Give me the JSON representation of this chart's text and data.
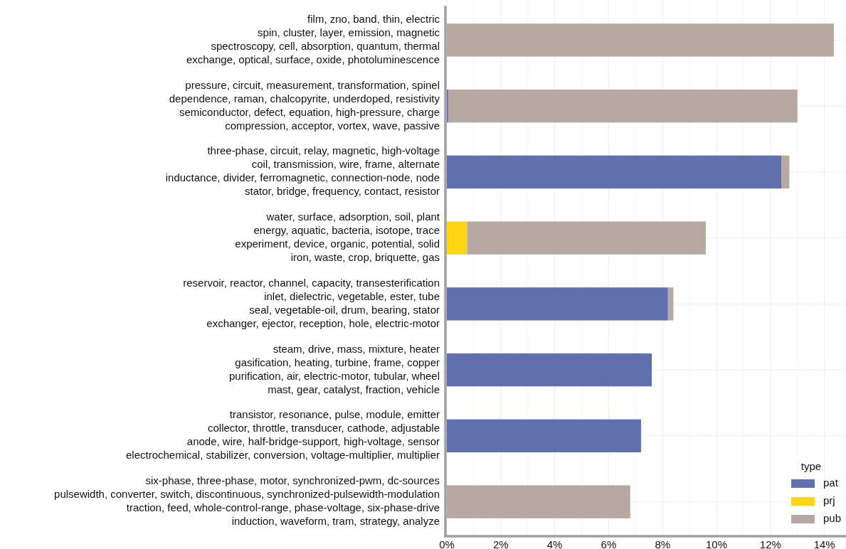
{
  "chart_data": {
    "type": "bar",
    "orientation": "horizontal",
    "stacked": true,
    "categories": [
      "film, zno, band, thin, electric\nspin, cluster, layer, emission, magnetic\nspectroscopy, cell, absorption, quantum, thermal\nexchange, optical, surface, oxide, photoluminescence",
      "pressure, circuit, measurement, transformation, spinel\ndependence, raman, chalcopyrite, underdoped, resistivity\nsemiconductor, defect, equation, high-pressure, charge\ncompression, acceptor, vortex, wave, passive",
      "three-phase, circuit, relay, magnetic, high-voltage\ncoil, transmission, wire, frame, alternate\ninductance, divider, ferromagnetic, connection-node, node\nstator, bridge, frequency, contact, resistor",
      "water, surface, adsorption, soil, plant\nenergy, aquatic, bacteria, isotope, trace\nexperiment, device, organic, potential, solid\niron, waste, crop, briquette, gas",
      "reservoir, reactor, channel, capacity, transesterification\ninlet, dielectric, vegetable, ester, tube\nseal, vegetable-oil, drum, bearing, stator\nexchanger, ejector, reception, hole, electric-motor",
      "steam, drive, mass, mixture, heater\ngasification, heating, turbine, frame, copper\npurification, air, electric-motor, tubular, wheel\nmast, gear, catalyst, fraction, vehicle",
      "transistor, resonance, pulse, module, emitter\ncollector, throttle, transducer, cathode, adjustable\nanode, wire, half-bridge-support, high-voltage, sensor\nelectrochemical, stabilizer, conversion, voltage-multiplier, multiplier",
      "six-phase, three-phase, motor, synchronized-pwm, dc-sources\npulsewidth, converter, switch, discontinuous, synchronized-pulsewidth-modulation\ntraction, feed, whole-control-range, phase-voltage, six-phase-drive\ninduction, waveform, tram, strategy, analyze"
    ],
    "series": [
      {
        "name": "pat",
        "color": "#6070ae",
        "values": [
          null,
          0.05,
          12.4,
          null,
          8.2,
          7.6,
          7.2,
          null
        ]
      },
      {
        "name": "prj",
        "color": "#ffd514",
        "values": [
          null,
          null,
          null,
          0.75,
          null,
          null,
          null,
          null
        ]
      },
      {
        "name": "pub",
        "color": "#b7a9a2",
        "values": [
          14.35,
          12.95,
          0.3,
          8.85,
          0.2,
          null,
          null,
          6.8
        ]
      }
    ],
    "xlim": [
      0,
      14.8
    ],
    "xticks": [
      {
        "value": 0,
        "label": "0%"
      },
      {
        "value": 2,
        "label": "2%"
      },
      {
        "value": 4,
        "label": "4%"
      },
      {
        "value": 6,
        "label": "6%"
      },
      {
        "value": 8,
        "label": "8%"
      },
      {
        "value": 10,
        "label": "10%"
      },
      {
        "value": 12,
        "label": "12%"
      },
      {
        "value": 14,
        "label": "14%"
      }
    ],
    "grid": true,
    "legend": "bottom right",
    "legend_title": "type"
  }
}
